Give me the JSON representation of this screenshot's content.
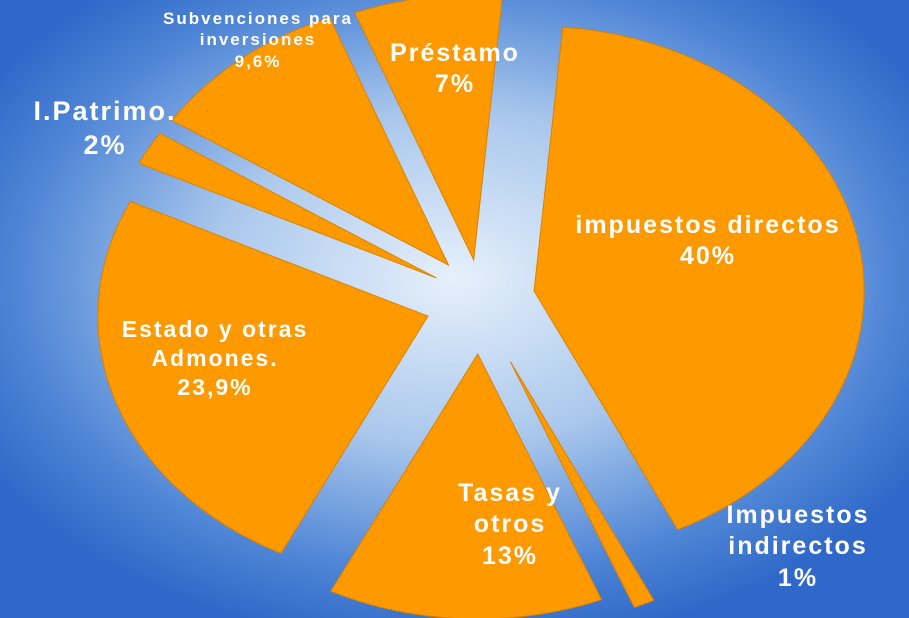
{
  "chart_data": {
    "type": "pie",
    "categories": [
      "impuestos directos",
      "Impuestos indirectos",
      "Tasas y otros",
      "Estado y otras Admones.",
      "I.Patrimo.",
      "Subvenciones para inversiones",
      "Préstamo"
    ],
    "values": [
      40,
      1,
      13,
      23.9,
      2,
      9.6,
      7
    ],
    "value_labels": [
      "40%",
      "1%",
      "13%",
      "23,9%",
      "2%",
      "9,6%",
      "7%"
    ],
    "color": "#ff9900"
  }
}
